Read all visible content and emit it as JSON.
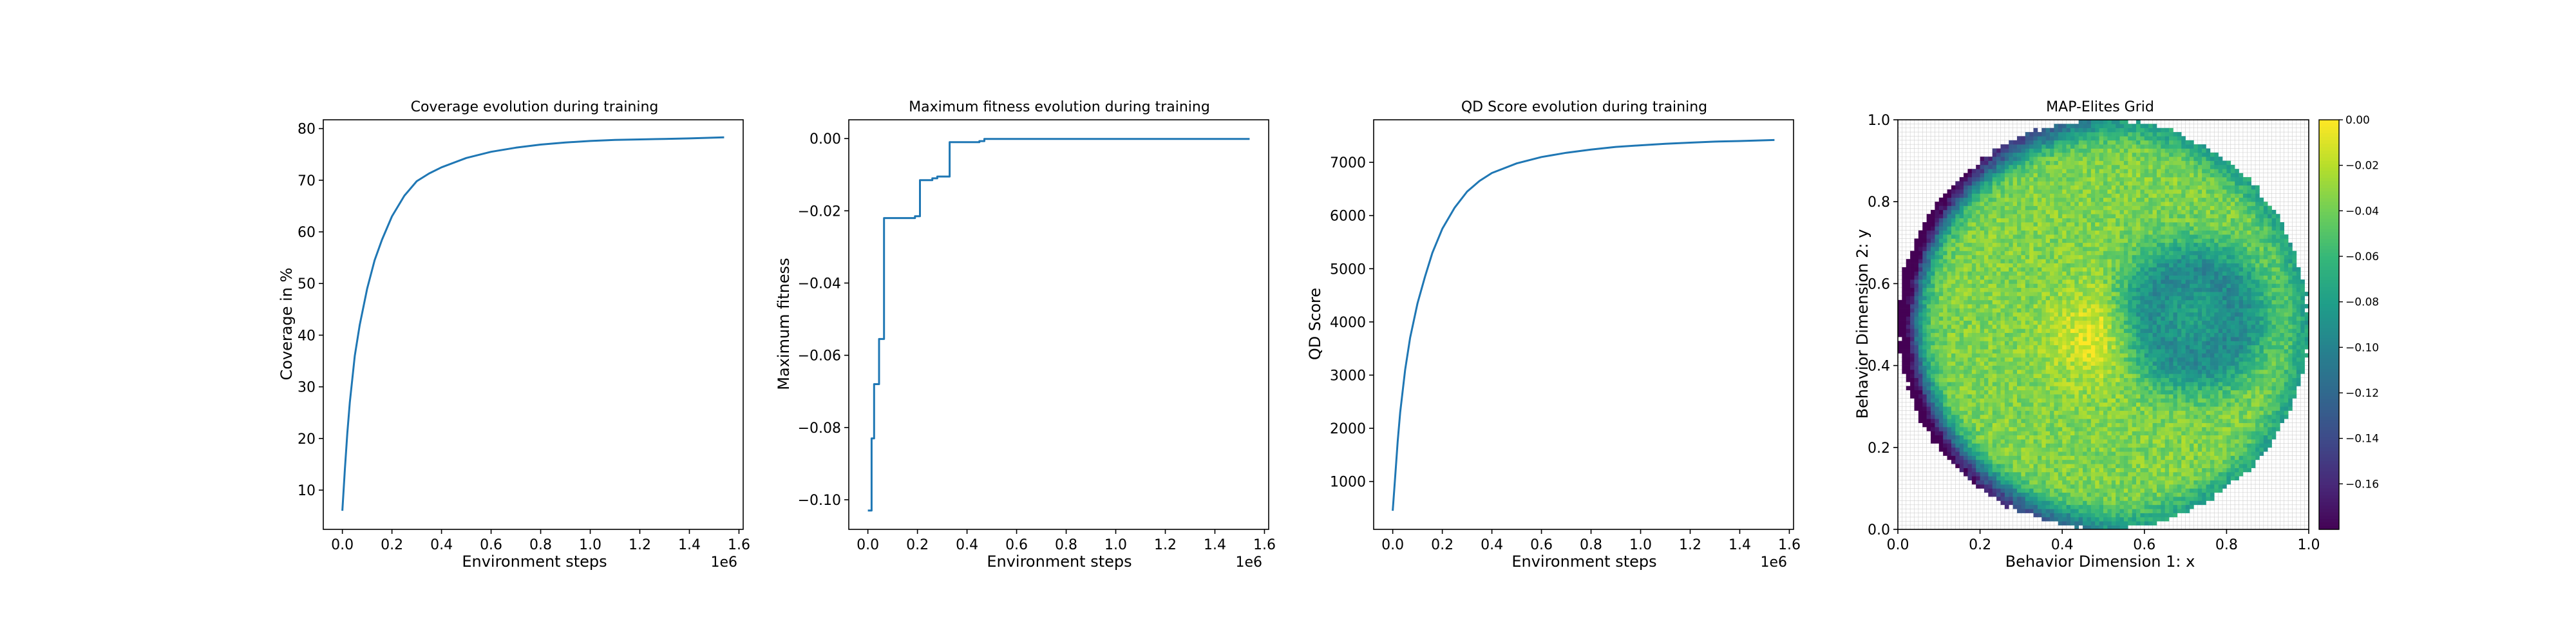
{
  "chart_data": [
    {
      "type": "line",
      "title": "Coverage evolution during training",
      "xlabel": "Environment steps",
      "ylabel": "Coverage in %",
      "x_offset_label": "1e6",
      "xlim": [
        -0.077,
        1.617
      ],
      "ylim": [
        2.4,
        81.7
      ],
      "xticks": [
        0.0,
        0.2,
        0.4,
        0.6,
        0.8,
        1.0,
        1.2,
        1.4,
        1.6
      ],
      "xtick_labels": [
        "0.0",
        "0.2",
        "0.4",
        "0.6",
        "0.8",
        "1.0",
        "1.2",
        "1.4",
        "1.6"
      ],
      "yticks": [
        10,
        20,
        30,
        40,
        50,
        60,
        70,
        80
      ],
      "ytick_labels": [
        "10",
        "20",
        "30",
        "40",
        "50",
        "60",
        "70",
        "80"
      ],
      "grid": false,
      "color": "#1f77b4",
      "series": [
        {
          "x": [
            0.0,
            0.01,
            0.02,
            0.03,
            0.05,
            0.07,
            0.1,
            0.13,
            0.16,
            0.2,
            0.25,
            0.3,
            0.35,
            0.4,
            0.5,
            0.6,
            0.7,
            0.8,
            0.9,
            1.0,
            1.1,
            1.2,
            1.3,
            1.4,
            1.54
          ],
          "y": [
            6.0,
            14.0,
            21.0,
            27.0,
            36.0,
            42.0,
            49.0,
            54.5,
            58.5,
            63.0,
            67.0,
            69.8,
            71.3,
            72.5,
            74.3,
            75.5,
            76.3,
            76.9,
            77.3,
            77.6,
            77.8,
            77.9,
            78.0,
            78.1,
            78.3
          ]
        }
      ]
    },
    {
      "type": "line",
      "title": "Maximum fitness evolution during training",
      "xlabel": "Environment steps",
      "ylabel": "Maximum fitness",
      "x_offset_label": "1e6",
      "xlim": [
        -0.077,
        1.617
      ],
      "ylim": [
        -0.1082,
        0.0052
      ],
      "xticks": [
        0.0,
        0.2,
        0.4,
        0.6,
        0.8,
        1.0,
        1.2,
        1.4,
        1.6
      ],
      "xtick_labels": [
        "0.0",
        "0.2",
        "0.4",
        "0.6",
        "0.8",
        "1.0",
        "1.2",
        "1.4",
        "1.6"
      ],
      "yticks": [
        -0.1,
        -0.08,
        -0.06,
        -0.04,
        -0.02,
        0.0
      ],
      "ytick_labels": [
        "−0.10",
        "−0.08",
        "−0.06",
        "−0.04",
        "−0.02",
        "0.00"
      ],
      "grid": false,
      "color": "#1f77b4",
      "series": [
        {
          "x": [
            0.0,
            0.015,
            0.015,
            0.025,
            0.025,
            0.045,
            0.045,
            0.065,
            0.065,
            0.19,
            0.19,
            0.21,
            0.21,
            0.26,
            0.26,
            0.28,
            0.28,
            0.33,
            0.33,
            0.45,
            0.45,
            0.47,
            0.47,
            1.54
          ],
          "y": [
            -0.103,
            -0.103,
            -0.083,
            -0.083,
            -0.068,
            -0.068,
            -0.0555,
            -0.0555,
            -0.022,
            -0.022,
            -0.0215,
            -0.0215,
            -0.0115,
            -0.0115,
            -0.011,
            -0.011,
            -0.0105,
            -0.0105,
            -0.001,
            -0.001,
            -0.0007,
            -0.0007,
            -0.0001,
            -0.0001
          ]
        }
      ]
    },
    {
      "type": "line",
      "title": "QD Score evolution during training",
      "xlabel": "Environment steps",
      "ylabel": "QD Score",
      "x_offset_label": "1e6",
      "xlim": [
        -0.077,
        1.617
      ],
      "ylim": [
        100,
        7800
      ],
      "xticks": [
        0.0,
        0.2,
        0.4,
        0.6,
        0.8,
        1.0,
        1.2,
        1.4,
        1.6
      ],
      "xtick_labels": [
        "0.0",
        "0.2",
        "0.4",
        "0.6",
        "0.8",
        "1.0",
        "1.2",
        "1.4",
        "1.6"
      ],
      "yticks": [
        1000,
        2000,
        3000,
        4000,
        5000,
        6000,
        7000
      ],
      "ytick_labels": [
        "1000",
        "2000",
        "3000",
        "4000",
        "5000",
        "6000",
        "7000"
      ],
      "grid": false,
      "color": "#1f77b4",
      "series": [
        {
          "x": [
            0.0,
            0.01,
            0.02,
            0.03,
            0.05,
            0.07,
            0.1,
            0.13,
            0.16,
            0.2,
            0.25,
            0.3,
            0.35,
            0.4,
            0.5,
            0.6,
            0.7,
            0.8,
            0.9,
            1.0,
            1.1,
            1.2,
            1.3,
            1.4,
            1.54
          ],
          "y": [
            450,
            1100,
            1750,
            2300,
            3100,
            3700,
            4350,
            4850,
            5300,
            5750,
            6150,
            6450,
            6650,
            6800,
            6980,
            7100,
            7180,
            7240,
            7290,
            7320,
            7350,
            7370,
            7390,
            7400,
            7420
          ]
        }
      ]
    },
    {
      "type": "heatmap",
      "title": "MAP-Elites Grid",
      "xlabel": "Behavior Dimension 1: x",
      "ylabel": "Behavior Dimension 2: y",
      "xlim": [
        0.0,
        1.0
      ],
      "ylim": [
        0.0,
        1.0
      ],
      "xticks": [
        0.0,
        0.2,
        0.4,
        0.6,
        0.8,
        1.0
      ],
      "xtick_labels": [
        "0.0",
        "0.2",
        "0.4",
        "0.6",
        "0.8",
        "1.0"
      ],
      "yticks": [
        0.0,
        0.2,
        0.4,
        0.6,
        0.8,
        1.0
      ],
      "ytick_labels": [
        "0.0",
        "0.2",
        "0.4",
        "0.6",
        "0.8",
        "1.0"
      ],
      "grid": true,
      "grid_color": "#d0d0d0",
      "colormap": "viridis",
      "value_range": [
        -0.18,
        0.0
      ],
      "colorbar_ticks": [
        0.0,
        -0.02,
        -0.04,
        -0.06,
        -0.08,
        -0.1,
        -0.12,
        -0.14,
        -0.16
      ],
      "colorbar_tick_labels": [
        "0.00",
        "−0.02",
        "−0.04",
        "−0.06",
        "−0.08",
        "−0.10",
        "−0.12",
        "−0.14",
        "−0.16"
      ],
      "grid_cells": 100,
      "filled_region": {
        "shape": "disk",
        "center": [
          0.5,
          0.5
        ],
        "radius": 0.5
      },
      "value_pattern": {
        "brightest_near": [
          0.48,
          0.47
        ],
        "darkest_near": [
          0.01,
          0.48
        ],
        "secondary_dark_ring_near": [
          0.72,
          0.52
        ]
      }
    }
  ]
}
